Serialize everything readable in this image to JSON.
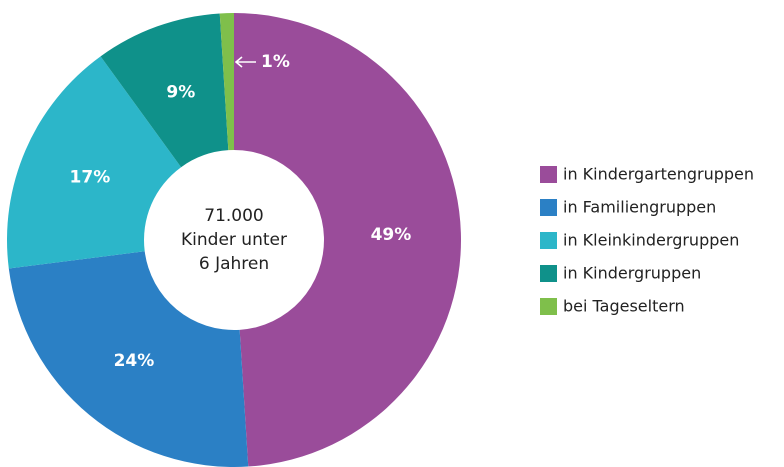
{
  "chart_data": {
    "type": "donut",
    "center_label": [
      "71.000",
      "Kinder unter",
      "6 Jahren"
    ],
    "categories": [
      "in Kindergartengruppen",
      "in Familiengruppen",
      "in Kleinkindergruppen",
      "in Kindergruppen",
      "bei Tageseltern"
    ],
    "values": [
      49,
      24,
      17,
      9,
      1
    ],
    "value_labels": [
      "49%",
      "24%",
      "17%",
      "9%",
      "1%"
    ],
    "colors": [
      "#9a4c9a",
      "#2b80c5",
      "#2cb6c9",
      "#0f918a",
      "#7fbf4b"
    ],
    "legend": "right"
  }
}
